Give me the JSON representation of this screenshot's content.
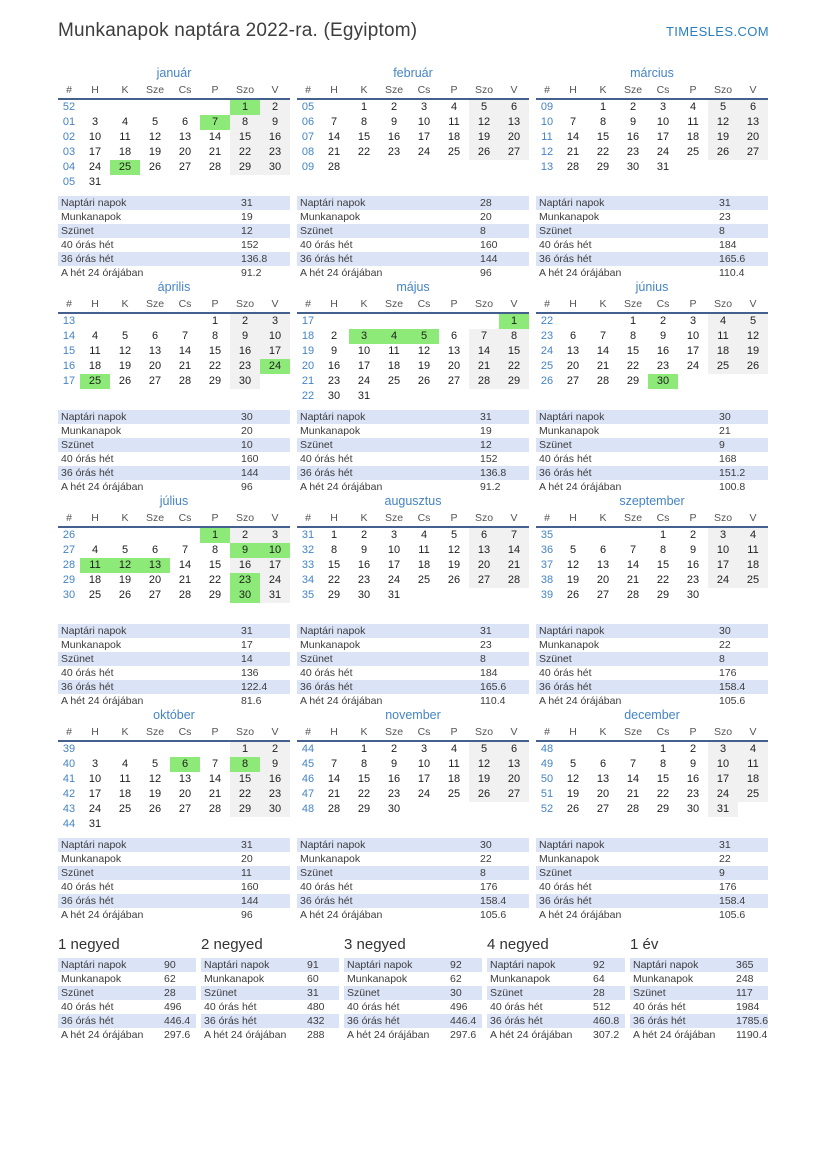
{
  "page": {
    "title": "Munkanapok naptára 2022-ra. (Egyiptom)",
    "site_link": "TIMESLES.COM"
  },
  "colors": {
    "accent_blue": "#4584c4",
    "link_blue": "#2b7fc0",
    "holiday_green": "#8dea78",
    "weekend_gray": "#f1f1f1",
    "stat_row_blue": "#dbe3f7",
    "header_line": "#44618d"
  },
  "day_headers": [
    "#",
    "H",
    "K",
    "Sze",
    "Cs",
    "P",
    "Szo",
    "V"
  ],
  "stat_labels": [
    "Naptári napok",
    "Munkanapok",
    "Szünet",
    "40 órás hét",
    "36 órás hét",
    "A hét 24 órájában"
  ],
  "months": [
    {
      "name": "január",
      "weeks": [
        {
          "num": "52",
          "days": [
            "",
            "",
            "",
            "",
            "",
            "1",
            "2"
          ]
        },
        {
          "num": "01",
          "days": [
            "3",
            "4",
            "5",
            "6",
            "7",
            "8",
            "9"
          ]
        },
        {
          "num": "02",
          "days": [
            "10",
            "11",
            "12",
            "13",
            "14",
            "15",
            "16"
          ]
        },
        {
          "num": "03",
          "days": [
            "17",
            "18",
            "19",
            "20",
            "21",
            "22",
            "23"
          ]
        },
        {
          "num": "04",
          "days": [
            "24",
            "25",
            "26",
            "27",
            "28",
            "29",
            "30"
          ]
        },
        {
          "num": "05",
          "days": [
            "31",
            "",
            "",
            "",
            "",
            "",
            ""
          ]
        }
      ],
      "green": [
        "1",
        "7",
        "25"
      ],
      "stats": [
        "31",
        "19",
        "12",
        "152",
        "136.8",
        "91.2"
      ]
    },
    {
      "name": "február",
      "weeks": [
        {
          "num": "05",
          "days": [
            "",
            "1",
            "2",
            "3",
            "4",
            "5",
            "6"
          ]
        },
        {
          "num": "06",
          "days": [
            "7",
            "8",
            "9",
            "10",
            "11",
            "12",
            "13"
          ]
        },
        {
          "num": "07",
          "days": [
            "14",
            "15",
            "16",
            "17",
            "18",
            "19",
            "20"
          ]
        },
        {
          "num": "08",
          "days": [
            "21",
            "22",
            "23",
            "24",
            "25",
            "26",
            "27"
          ]
        },
        {
          "num": "09",
          "days": [
            "28",
            "",
            "",
            "",
            "",
            "",
            ""
          ]
        }
      ],
      "green": [],
      "stats": [
        "28",
        "20",
        "8",
        "160",
        "144",
        "96"
      ]
    },
    {
      "name": "március",
      "weeks": [
        {
          "num": "09",
          "days": [
            "",
            "1",
            "2",
            "3",
            "4",
            "5",
            "6"
          ]
        },
        {
          "num": "10",
          "days": [
            "7",
            "8",
            "9",
            "10",
            "11",
            "12",
            "13"
          ]
        },
        {
          "num": "11",
          "days": [
            "14",
            "15",
            "16",
            "17",
            "18",
            "19",
            "20"
          ]
        },
        {
          "num": "12",
          "days": [
            "21",
            "22",
            "23",
            "24",
            "25",
            "26",
            "27"
          ]
        },
        {
          "num": "13",
          "days": [
            "28",
            "29",
            "30",
            "31",
            "",
            "",
            ""
          ]
        }
      ],
      "green": [],
      "stats": [
        "31",
        "23",
        "8",
        "184",
        "165.6",
        "110.4"
      ]
    },
    {
      "name": "április",
      "weeks": [
        {
          "num": "13",
          "days": [
            "",
            "",
            "",
            "",
            "1",
            "2",
            "3"
          ]
        },
        {
          "num": "14",
          "days": [
            "4",
            "5",
            "6",
            "7",
            "8",
            "9",
            "10"
          ]
        },
        {
          "num": "15",
          "days": [
            "11",
            "12",
            "13",
            "14",
            "15",
            "16",
            "17"
          ]
        },
        {
          "num": "16",
          "days": [
            "18",
            "19",
            "20",
            "21",
            "22",
            "23",
            "24"
          ]
        },
        {
          "num": "17",
          "days": [
            "25",
            "26",
            "27",
            "28",
            "29",
            "30",
            ""
          ]
        }
      ],
      "green": [
        "24",
        "25"
      ],
      "stats": [
        "30",
        "20",
        "10",
        "160",
        "144",
        "96"
      ]
    },
    {
      "name": "május",
      "weeks": [
        {
          "num": "17",
          "days": [
            "",
            "",
            "",
            "",
            "",
            "",
            "1"
          ]
        },
        {
          "num": "18",
          "days": [
            "2",
            "3",
            "4",
            "5",
            "6",
            "7",
            "8"
          ]
        },
        {
          "num": "19",
          "days": [
            "9",
            "10",
            "11",
            "12",
            "13",
            "14",
            "15"
          ]
        },
        {
          "num": "20",
          "days": [
            "16",
            "17",
            "18",
            "19",
            "20",
            "21",
            "22"
          ]
        },
        {
          "num": "21",
          "days": [
            "23",
            "24",
            "25",
            "26",
            "27",
            "28",
            "29"
          ]
        },
        {
          "num": "22",
          "days": [
            "30",
            "31",
            "",
            "",
            "",
            "",
            ""
          ]
        }
      ],
      "green": [
        "1",
        "3",
        "4",
        "5"
      ],
      "stats": [
        "31",
        "19",
        "12",
        "152",
        "136.8",
        "91.2"
      ]
    },
    {
      "name": "június",
      "weeks": [
        {
          "num": "22",
          "days": [
            "",
            "",
            "1",
            "2",
            "3",
            "4",
            "5"
          ]
        },
        {
          "num": "23",
          "days": [
            "6",
            "7",
            "8",
            "9",
            "10",
            "11",
            "12"
          ]
        },
        {
          "num": "24",
          "days": [
            "13",
            "14",
            "15",
            "16",
            "17",
            "18",
            "19"
          ]
        },
        {
          "num": "25",
          "days": [
            "20",
            "21",
            "22",
            "23",
            "24",
            "25",
            "26"
          ]
        },
        {
          "num": "26",
          "days": [
            "27",
            "28",
            "29",
            "30",
            "",
            "",
            ""
          ]
        }
      ],
      "green": [
        "30"
      ],
      "stats": [
        "30",
        "21",
        "9",
        "168",
        "151.2",
        "100.8"
      ]
    },
    {
      "name": "július",
      "weeks": [
        {
          "num": "26",
          "days": [
            "",
            "",
            "",
            "",
            "1",
            "2",
            "3"
          ]
        },
        {
          "num": "27",
          "days": [
            "4",
            "5",
            "6",
            "7",
            "8",
            "9",
            "10"
          ]
        },
        {
          "num": "28",
          "days": [
            "11",
            "12",
            "13",
            "14",
            "15",
            "16",
            "17"
          ]
        },
        {
          "num": "29",
          "days": [
            "18",
            "19",
            "20",
            "21",
            "22",
            "23",
            "24"
          ]
        },
        {
          "num": "30",
          "days": [
            "25",
            "26",
            "27",
            "28",
            "29",
            "30",
            "31"
          ]
        }
      ],
      "green": [
        "1",
        "9",
        "10",
        "11",
        "12",
        "13",
        "23",
        "30"
      ],
      "stats": [
        "31",
        "17",
        "14",
        "136",
        "122.4",
        "81.6"
      ]
    },
    {
      "name": "augusztus",
      "weeks": [
        {
          "num": "31",
          "days": [
            "1",
            "2",
            "3",
            "4",
            "5",
            "6",
            "7"
          ]
        },
        {
          "num": "32",
          "days": [
            "8",
            "9",
            "10",
            "11",
            "12",
            "13",
            "14"
          ]
        },
        {
          "num": "33",
          "days": [
            "15",
            "16",
            "17",
            "18",
            "19",
            "20",
            "21"
          ]
        },
        {
          "num": "34",
          "days": [
            "22",
            "23",
            "24",
            "25",
            "26",
            "27",
            "28"
          ]
        },
        {
          "num": "35",
          "days": [
            "29",
            "30",
            "31",
            "",
            "",
            "",
            ""
          ]
        }
      ],
      "green": [],
      "stats": [
        "31",
        "23",
        "8",
        "184",
        "165.6",
        "110.4"
      ]
    },
    {
      "name": "szeptember",
      "weeks": [
        {
          "num": "35",
          "days": [
            "",
            "",
            "",
            "1",
            "2",
            "3",
            "4"
          ]
        },
        {
          "num": "36",
          "days": [
            "5",
            "6",
            "7",
            "8",
            "9",
            "10",
            "11"
          ]
        },
        {
          "num": "37",
          "days": [
            "12",
            "13",
            "14",
            "15",
            "16",
            "17",
            "18"
          ]
        },
        {
          "num": "38",
          "days": [
            "19",
            "20",
            "21",
            "22",
            "23",
            "24",
            "25"
          ]
        },
        {
          "num": "39",
          "days": [
            "26",
            "27",
            "28",
            "29",
            "30",
            "",
            ""
          ]
        }
      ],
      "green": [],
      "stats": [
        "30",
        "22",
        "8",
        "176",
        "158.4",
        "105.6"
      ]
    },
    {
      "name": "október",
      "weeks": [
        {
          "num": "39",
          "days": [
            "",
            "",
            "",
            "",
            "",
            "1",
            "2"
          ]
        },
        {
          "num": "40",
          "days": [
            "3",
            "4",
            "5",
            "6",
            "7",
            "8",
            "9"
          ]
        },
        {
          "num": "41",
          "days": [
            "10",
            "11",
            "12",
            "13",
            "14",
            "15",
            "16"
          ]
        },
        {
          "num": "42",
          "days": [
            "17",
            "18",
            "19",
            "20",
            "21",
            "22",
            "23"
          ]
        },
        {
          "num": "43",
          "days": [
            "24",
            "25",
            "26",
            "27",
            "28",
            "29",
            "30"
          ]
        },
        {
          "num": "44",
          "days": [
            "31",
            "",
            "",
            "",
            "",
            "",
            ""
          ]
        }
      ],
      "green": [
        "6",
        "8"
      ],
      "stats": [
        "31",
        "20",
        "11",
        "160",
        "144",
        "96"
      ]
    },
    {
      "name": "november",
      "weeks": [
        {
          "num": "44",
          "days": [
            "",
            "1",
            "2",
            "3",
            "4",
            "5",
            "6"
          ]
        },
        {
          "num": "45",
          "days": [
            "7",
            "8",
            "9",
            "10",
            "11",
            "12",
            "13"
          ]
        },
        {
          "num": "46",
          "days": [
            "14",
            "15",
            "16",
            "17",
            "18",
            "19",
            "20"
          ]
        },
        {
          "num": "47",
          "days": [
            "21",
            "22",
            "23",
            "24",
            "25",
            "26",
            "27"
          ]
        },
        {
          "num": "48",
          "days": [
            "28",
            "29",
            "30",
            "",
            "",
            "",
            ""
          ]
        }
      ],
      "green": [],
      "stats": [
        "30",
        "22",
        "8",
        "176",
        "158.4",
        "105.6"
      ]
    },
    {
      "name": "december",
      "weeks": [
        {
          "num": "48",
          "days": [
            "",
            "",
            "",
            "1",
            "2",
            "3",
            "4"
          ]
        },
        {
          "num": "49",
          "days": [
            "5",
            "6",
            "7",
            "8",
            "9",
            "10",
            "11"
          ]
        },
        {
          "num": "50",
          "days": [
            "12",
            "13",
            "14",
            "15",
            "16",
            "17",
            "18"
          ]
        },
        {
          "num": "51",
          "days": [
            "19",
            "20",
            "21",
            "22",
            "23",
            "24",
            "25"
          ]
        },
        {
          "num": "52",
          "days": [
            "26",
            "27",
            "28",
            "29",
            "30",
            "31",
            ""
          ]
        }
      ],
      "green": [],
      "stats": [
        "31",
        "22",
        "9",
        "176",
        "158.4",
        "105.6"
      ]
    }
  ],
  "summaries": [
    {
      "title": "1 negyed",
      "stats": [
        "90",
        "62",
        "28",
        "496",
        "446.4",
        "297.6"
      ]
    },
    {
      "title": "2 negyed",
      "stats": [
        "91",
        "60",
        "31",
        "480",
        "432",
        "288"
      ]
    },
    {
      "title": "3 negyed",
      "stats": [
        "92",
        "62",
        "30",
        "496",
        "446.4",
        "297.6"
      ]
    },
    {
      "title": "4 negyed",
      "stats": [
        "92",
        "64",
        "28",
        "512",
        "460.8",
        "307.2"
      ]
    },
    {
      "title": "1 év",
      "stats": [
        "365",
        "248",
        "117",
        "1984",
        "1785.6",
        "1190.4"
      ]
    }
  ]
}
